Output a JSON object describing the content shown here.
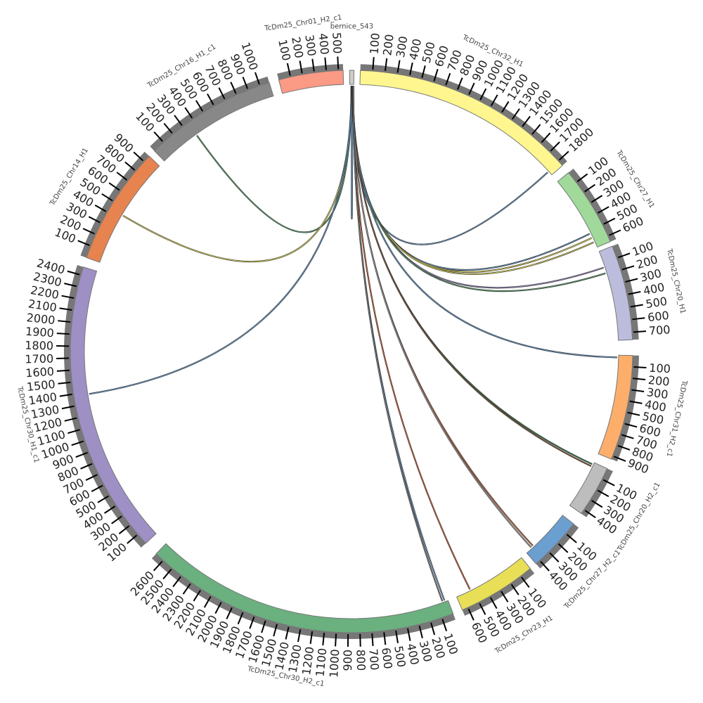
{
  "chart_data": {
    "type": "chord",
    "title": "",
    "chromosomes": [
      {
        "name": "bernice_543",
        "length": 20,
        "color": "#cccccc",
        "ticks": []
      },
      {
        "name": "TcDm25_Chr32_H1",
        "length": 1850,
        "color": "#fff68f",
        "ticks": [
          "100",
          "200",
          "300",
          "400",
          "500",
          "600",
          "700",
          "800",
          "900",
          "1000",
          "1100",
          "1200",
          "1300",
          "1400",
          "1500",
          "1600",
          "1700",
          "1800"
        ]
      },
      {
        "name": "TcDm25_Chr27_H1",
        "length": 650,
        "color": "#a1d99b",
        "ticks": [
          "100",
          "200",
          "300",
          "400",
          "500",
          "600"
        ]
      },
      {
        "name": "TcDm25_Chr20_H1",
        "length": 760,
        "color": "#bcbddc",
        "ticks": [
          "100",
          "200",
          "300",
          "400",
          "500",
          "600",
          "700"
        ]
      },
      {
        "name": "TcDm25_Chr31_H2_c1",
        "length": 930,
        "color": "#fdae6b",
        "ticks": [
          "100",
          "200",
          "300",
          "400",
          "500",
          "600",
          "700",
          "800",
          "900"
        ]
      },
      {
        "name": "TcDm25_Chr20_H2_c1",
        "length": 440,
        "color": "#bdbdbd",
        "ticks": [
          "100",
          "200",
          "300",
          "400"
        ]
      },
      {
        "name": "TcDm25_Chr27_H2_c1",
        "length": 440,
        "color": "#6a9fcf",
        "ticks": [
          "100",
          "200",
          "300",
          "400"
        ]
      },
      {
        "name": "TcDm25_Chr23_H1",
        "length": 650,
        "color": "#e8df56",
        "ticks": [
          "100",
          "200",
          "300",
          "400",
          "500",
          "600"
        ]
      },
      {
        "name": "TcDm25_Chr30_H2_c1",
        "length": 2680,
        "color": "#6bb07f",
        "ticks": [
          "100",
          "200",
          "300",
          "400",
          "500",
          "600",
          "700",
          "800",
          "900",
          "1000",
          "1100",
          "1200",
          "1300",
          "1400",
          "1500",
          "1600",
          "1700",
          "1800",
          "1900",
          "2000",
          "2100",
          "2200",
          "2300",
          "2400",
          "2500",
          "2600"
        ]
      },
      {
        "name": "TcDm25_Chr30_H1_c1",
        "length": 2470,
        "color": "#9e8fc5",
        "ticks": [
          "100",
          "200",
          "300",
          "400",
          "500",
          "600",
          "700",
          "800",
          "900",
          "1000",
          "1100",
          "1200",
          "1300",
          "1400",
          "1500",
          "1600",
          "1700",
          "1800",
          "1900",
          "2000",
          "2100",
          "2200",
          "2300",
          "2400"
        ]
      },
      {
        "name": "TcDm25_Chr14_H1",
        "length": 960,
        "color": "#e6834f",
        "ticks": [
          "100",
          "200",
          "300",
          "400",
          "500",
          "600",
          "700",
          "800",
          "900"
        ]
      },
      {
        "name": "TcDm25_Chr16_H1_c1",
        "length": 1080,
        "color": "#888888",
        "ticks": [
          "100",
          "200",
          "300",
          "400",
          "500",
          "600",
          "700",
          "800",
          "900",
          "1000"
        ]
      },
      {
        "name": "TcDm25_Chr01_H2_c1",
        "length": 540,
        "color": "#fb9a85",
        "ticks": [
          "100",
          "200",
          "300",
          "400",
          "500"
        ]
      }
    ],
    "links": [
      {
        "source": "bernice_543",
        "source_pos": 10,
        "target": "bernice_543",
        "target_pos": 14,
        "color": "#6a9fcf"
      },
      {
        "source": "bernice_543",
        "source_pos": 8,
        "target": "TcDm25_Chr16_H1_c1",
        "target_pos": 350,
        "color": "#5aa06a"
      },
      {
        "source": "bernice_543",
        "source_pos": 9,
        "target": "TcDm25_Chr14_H1",
        "target_pos": 440,
        "color": "#e8df56"
      },
      {
        "source": "bernice_543",
        "source_pos": 11,
        "target": "TcDm25_Chr30_H1_c1",
        "target_pos": 1380,
        "color": "#6a9fcf"
      },
      {
        "source": "bernice_543",
        "source_pos": 12,
        "target": "TcDm25_Chr32_H1",
        "target_pos": 1810,
        "color": "#6a9fcf"
      },
      {
        "source": "bernice_543",
        "source_pos": 12,
        "target": "TcDm25_Chr27_H1",
        "target_pos": 520,
        "color": "#6a9fcf"
      },
      {
        "source": "bernice_543",
        "source_pos": 13,
        "target": "TcDm25_Chr27_H1",
        "target_pos": 560,
        "color": "#e8df56"
      },
      {
        "source": "bernice_543",
        "source_pos": 13,
        "target": "TcDm25_Chr27_H1",
        "target_pos": 600,
        "color": "#e8df56"
      },
      {
        "source": "bernice_543",
        "source_pos": 14,
        "target": "TcDm25_Chr20_H1",
        "target_pos": 140,
        "color": "#9e8fc5"
      },
      {
        "source": "bernice_543",
        "source_pos": 14,
        "target": "TcDm25_Chr20_H1",
        "target_pos": 190,
        "color": "#5aa06a"
      },
      {
        "source": "bernice_543",
        "source_pos": 15,
        "target": "TcDm25_Chr31_H2_c1",
        "target_pos": 20,
        "color": "#6a9fcf"
      },
      {
        "source": "bernice_543",
        "source_pos": 15,
        "target": "TcDm25_Chr20_H2_c1",
        "target_pos": 20,
        "color": "#3a7a4a"
      },
      {
        "source": "bernice_543",
        "source_pos": 16,
        "target": "TcDm25_Chr20_H2_c1",
        "target_pos": 40,
        "color": "#8a5a3a"
      },
      {
        "source": "bernice_543",
        "source_pos": 16,
        "target": "TcDm25_Chr27_H2_c1",
        "target_pos": 360,
        "color": "#d9643a"
      },
      {
        "source": "bernice_543",
        "source_pos": 17,
        "target": "TcDm25_Chr27_H2_c1",
        "target_pos": 380,
        "color": "#aaaaaa"
      },
      {
        "source": "bernice_543",
        "source_pos": 17,
        "target": "TcDm25_Chr23_H1",
        "target_pos": 520,
        "color": "#d9643a"
      },
      {
        "source": "bernice_543",
        "source_pos": 18,
        "target": "TcDm25_Chr30_H2_c1",
        "target_pos": 30,
        "color": "#6a9fcf"
      },
      {
        "source": "bernice_543",
        "source_pos": 18,
        "target": "TcDm25_Chr30_H2_c1",
        "target_pos": 50,
        "color": "#888888"
      }
    ]
  }
}
